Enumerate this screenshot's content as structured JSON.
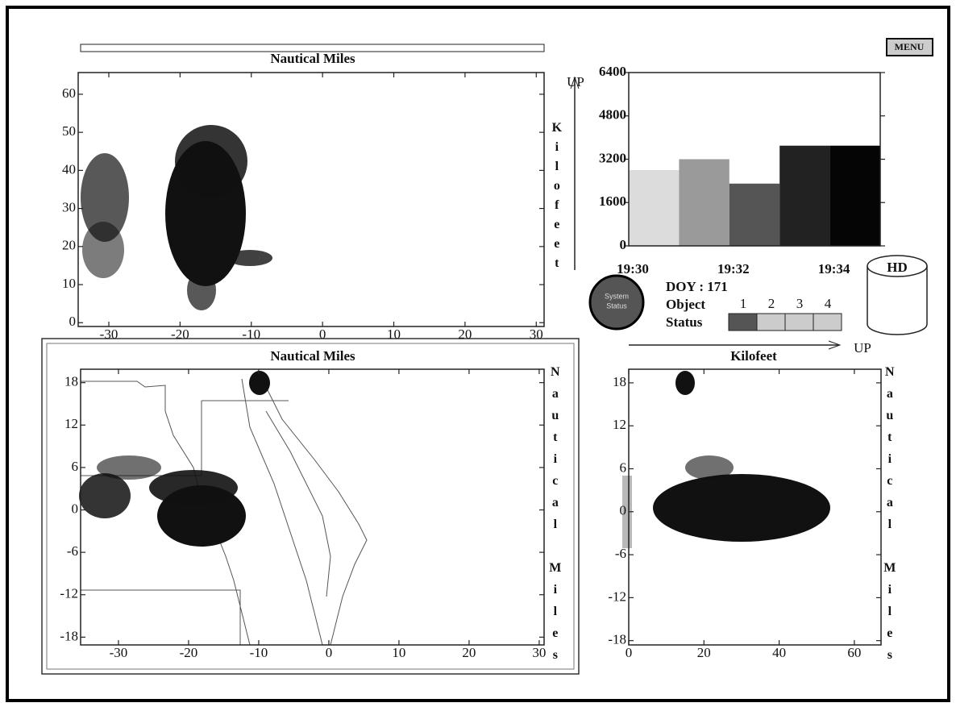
{
  "menu_button": "MENU",
  "top_plot": {
    "title": "Nautical Miles",
    "side_label": "Kilofeet",
    "up_label": "UP",
    "xlim": [
      -34.3,
      31.1
    ],
    "xticks": [
      -30,
      -20,
      -10,
      0,
      10,
      20,
      30
    ],
    "ylim": [
      -1,
      65.7
    ],
    "yticks": [
      0,
      10,
      20,
      30,
      40,
      50,
      60
    ]
  },
  "bar_chart": {
    "type": "bar",
    "categories": [
      "19:30",
      null,
      "19:32",
      null,
      "19:34"
    ],
    "values": [
      2800,
      3200,
      2300,
      3700,
      3700
    ],
    "colors": [
      "#dcdcdc",
      "#9a9a9a",
      "#555555",
      "#222222",
      "#050505"
    ],
    "ylim": [
      0,
      6400
    ],
    "yticks": [
      0,
      1600,
      3200,
      4800,
      6400
    ]
  },
  "status_panel": {
    "system_status": [
      "System",
      "Status"
    ],
    "doy": "DOY : 171",
    "object_label": "Object",
    "objects": [
      1,
      2,
      3,
      4
    ],
    "status_label": "Status",
    "status_colors": [
      "#555555",
      "#cccccc",
      "#cccccc",
      "#cccccc"
    ]
  },
  "disk_label": "HD",
  "plan_view": {
    "title": "Nautical Miles",
    "side_label": "Nautical Miles",
    "xlim": [
      -35.4,
      30.7
    ],
    "xticks": [
      -30,
      -20,
      -10,
      0,
      10,
      20,
      30
    ],
    "ylim": [
      -19.1,
      19.9
    ],
    "yticks": [
      -18,
      -12,
      -6,
      0,
      6,
      12,
      18
    ]
  },
  "side_view": {
    "title": "Kilofeet",
    "up_label": "UP",
    "side_label": "Nautical Miles",
    "xlim": [
      0,
      67.1
    ],
    "xticks": [
      0,
      20,
      40,
      60
    ],
    "ylim": [
      -18.6,
      19.9
    ],
    "yticks": [
      -18,
      -12,
      -6,
      0,
      6,
      12,
      18
    ]
  }
}
